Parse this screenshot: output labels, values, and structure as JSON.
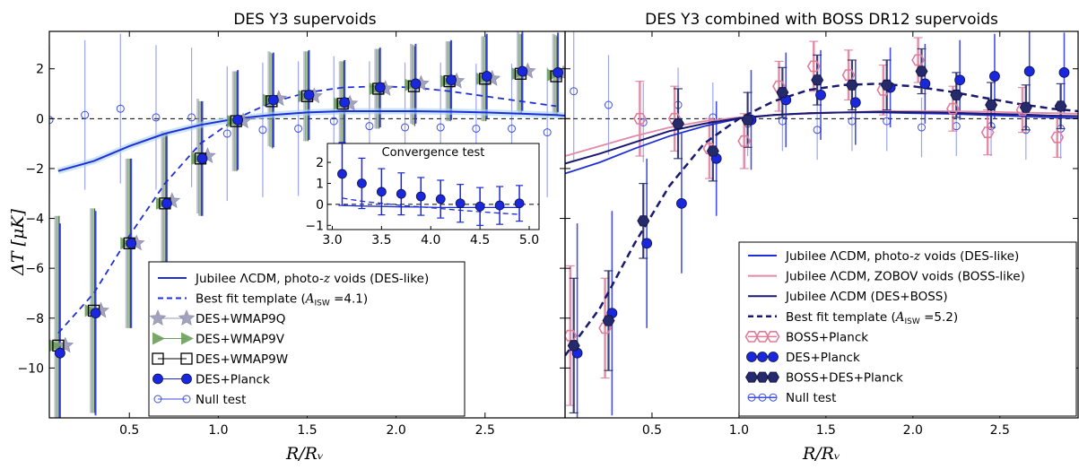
{
  "colors": {
    "jubilee_des": "#1f2fd6",
    "jubilee_boss": "#e08aa8",
    "jubilee_combined": "#191970",
    "best_fit_left": "#1f2fd6",
    "best_fit_right": "#191970",
    "des_planck": "#1a28dd",
    "boss_planck": "#e07b9a",
    "boss_des_planck": "#252a6a",
    "wmap9q": "#9a9ab8",
    "wmap9v": "#6a9e5a",
    "wmap9w": "#000000",
    "null_test": "#3d4ee0"
  },
  "chart_data": [
    {
      "type": "line",
      "title": "DES Y3 supervoids",
      "ylabel": "ΔT [μK]",
      "xlabel": "R/Rᵥ",
      "xlim": [
        0.05,
        2.95
      ],
      "ylim": [
        -12,
        3.5
      ],
      "xticks": [
        "0.5",
        "1.0",
        "1.5",
        "2.0",
        "2.5"
      ],
      "yticks": [
        "−10",
        "−8",
        "−6",
        "−4",
        "−2",
        "0",
        "2"
      ],
      "x": [
        0.1,
        0.3,
        0.5,
        0.7,
        0.9,
        1.1,
        1.3,
        1.5,
        1.7,
        1.9,
        2.1,
        2.3,
        2.5,
        2.7,
        2.9
      ],
      "series": [
        {
          "name": "Jubilee ΛCDM, photo-z voids (DES-like)",
          "kind": "line",
          "x": [
            0.1,
            0.3,
            0.5,
            0.7,
            0.9,
            1.1,
            1.3,
            1.5,
            1.7,
            1.9,
            2.1,
            2.3,
            2.5,
            2.7,
            2.9
          ],
          "values": [
            -2.1,
            -1.7,
            -1.1,
            -0.6,
            -0.25,
            0.0,
            0.15,
            0.25,
            0.3,
            0.3,
            0.3,
            0.28,
            0.25,
            0.2,
            0.15
          ]
        },
        {
          "name": "Best fit template (A_ISW = 4.1)",
          "kind": "dashed",
          "x": [
            0.1,
            0.3,
            0.5,
            0.7,
            0.9,
            1.1,
            1.3,
            1.5,
            1.7,
            1.9,
            2.1,
            2.3,
            2.5,
            2.7,
            2.9
          ],
          "values": [
            -8.6,
            -7.0,
            -4.7,
            -2.6,
            -1.0,
            0.0,
            0.65,
            1.05,
            1.25,
            1.3,
            1.25,
            1.1,
            0.9,
            0.7,
            0.5
          ]
        },
        {
          "name": "DES+WMAP9Q",
          "kind": "points",
          "x": [
            0.1,
            0.3,
            0.5,
            0.7,
            0.9,
            1.1,
            1.3,
            1.5,
            1.7,
            1.9,
            2.1,
            2.3,
            2.5,
            2.7,
            2.9
          ],
          "values": [
            -9.1,
            -7.7,
            -5.0,
            -3.3,
            -1.5,
            -0.1,
            0.8,
            0.9,
            0.6,
            1.2,
            1.4,
            1.5,
            1.6,
            1.9,
            1.8
          ],
          "errors": [
            5.2,
            4.1,
            3.4,
            2.8,
            2.3,
            2.0,
            1.9,
            1.8,
            1.7,
            1.6,
            1.6,
            1.6,
            1.7,
            1.6,
            1.6
          ]
        },
        {
          "name": "DES+WMAP9V",
          "kind": "points",
          "x": [
            0.1,
            0.3,
            0.5,
            0.7,
            0.9,
            1.1,
            1.3,
            1.5,
            1.7,
            1.9,
            2.1,
            2.3,
            2.5,
            2.7,
            2.9
          ],
          "values": [
            -9.1,
            -7.7,
            -5.0,
            -3.4,
            -1.6,
            -0.1,
            0.75,
            0.9,
            0.6,
            1.2,
            1.35,
            1.5,
            1.6,
            1.8,
            1.75
          ],
          "errors": [
            5.2,
            4.1,
            3.4,
            2.8,
            2.3,
            2.0,
            1.9,
            1.8,
            1.7,
            1.6,
            1.6,
            1.6,
            1.7,
            1.6,
            1.6
          ]
        },
        {
          "name": "DES+WMAP9W",
          "kind": "points",
          "x": [
            0.1,
            0.3,
            0.5,
            0.7,
            0.9,
            1.1,
            1.3,
            1.5,
            1.7,
            1.9,
            2.1,
            2.3,
            2.5,
            2.7,
            2.9
          ],
          "values": [
            -9.1,
            -7.7,
            -5.0,
            -3.4,
            -1.6,
            -0.1,
            0.7,
            0.9,
            0.6,
            1.2,
            1.3,
            1.5,
            1.6,
            1.8,
            1.7
          ],
          "errors": [
            5.2,
            4.1,
            3.4,
            2.8,
            2.3,
            2.0,
            1.9,
            1.8,
            1.7,
            1.6,
            1.6,
            1.6,
            1.7,
            1.6,
            1.6
          ]
        },
        {
          "name": "DES+Planck",
          "kind": "points",
          "x": [
            0.1,
            0.3,
            0.5,
            0.7,
            0.9,
            1.1,
            1.3,
            1.5,
            1.7,
            1.9,
            2.1,
            2.3,
            2.5,
            2.7,
            2.9
          ],
          "values": [
            -9.4,
            -7.8,
            -5.0,
            -3.4,
            -1.6,
            -0.05,
            0.75,
            0.95,
            0.65,
            1.25,
            1.4,
            1.55,
            1.7,
            1.9,
            1.85
          ],
          "errors": [
            5.2,
            4.1,
            3.4,
            2.8,
            2.3,
            2.0,
            1.9,
            1.8,
            1.7,
            1.6,
            1.6,
            1.6,
            1.7,
            1.6,
            1.6
          ]
        },
        {
          "name": "Null test",
          "kind": "open-points",
          "x": [
            0.1,
            0.3,
            0.5,
            0.7,
            0.9,
            1.1,
            1.3,
            1.5,
            1.7,
            1.9,
            2.1,
            2.3,
            2.5,
            2.7,
            2.9
          ],
          "values": [
            -0.05,
            0.15,
            0.4,
            0.05,
            0.05,
            -0.6,
            -0.45,
            -0.4,
            -0.1,
            -0.3,
            -0.35,
            -0.35,
            -0.4,
            -0.4,
            -0.55
          ],
          "errors": [
            3.0,
            3.0,
            3.0,
            2.9,
            2.8,
            2.7,
            2.7,
            2.7,
            2.6,
            2.6,
            2.6,
            2.6,
            2.6,
            2.6,
            2.6
          ]
        }
      ],
      "legend": {
        "placement": "lower-right",
        "entries": [
          {
            "label": "Jubilee ΛCDM, photo-",
            "math": "z",
            "suffix": " voids (DES-like)"
          },
          {
            "label": "Best fit template (",
            "math": "A",
            "sub": "ISW",
            "suffix": " =4.1)"
          },
          {
            "label": "DES+WMAP9Q"
          },
          {
            "label": "DES+WMAP9V"
          },
          {
            "label": "DES+WMAP9W"
          },
          {
            "label": "DES+Planck"
          },
          {
            "label": "Null test"
          }
        ]
      },
      "inset": {
        "title": "Convergence test",
        "xlim": [
          2.95,
          5.1
        ],
        "ylim": [
          -1.2,
          2.9
        ],
        "xticks": [
          "3.0",
          "3.5",
          "4.0",
          "4.5",
          "5.0"
        ],
        "yticks": [
          "−1",
          "0",
          "1",
          "2"
        ],
        "x": [
          3.1,
          3.3,
          3.5,
          3.7,
          3.9,
          4.1,
          4.3,
          4.5,
          4.7,
          4.9
        ],
        "points": [
          1.45,
          1.0,
          0.6,
          0.5,
          0.38,
          0.25,
          0.05,
          -0.1,
          -0.05,
          0.05
        ],
        "errors": [
          1.5,
          1.2,
          1.1,
          1.0,
          0.9,
          0.9,
          0.9,
          0.9,
          0.9,
          0.85
        ],
        "line": [
          -0.05,
          -0.08,
          -0.1,
          -0.12,
          -0.13,
          -0.15,
          -0.15,
          -0.15,
          -0.15,
          -0.15
        ],
        "dashed": [
          0.3,
          0.15,
          0.05,
          -0.05,
          -0.12,
          -0.2,
          -0.28,
          -0.35,
          -0.42,
          -0.48
        ]
      }
    },
    {
      "type": "line",
      "title": "DES Y3 combined with BOSS DR12 supervoids",
      "xlabel": "R/Rᵥ",
      "xlim": [
        0.0,
        2.95
      ],
      "ylim": [
        -12,
        3.5
      ],
      "xticks": [
        "0.5",
        "1.0",
        "1.5",
        "2.0",
        "2.5"
      ],
      "x": [
        0.05,
        0.25,
        0.45,
        0.65,
        0.85,
        1.05,
        1.25,
        1.45,
        1.65,
        1.85,
        2.05,
        2.25,
        2.45,
        2.65,
        2.85
      ],
      "series": [
        {
          "name": "Jubilee ΛCDM, photo-z voids (DES-like)",
          "kind": "line",
          "x": [
            0.0,
            0.2,
            0.4,
            0.6,
            0.8,
            1.0,
            1.2,
            1.4,
            1.6,
            1.8,
            2.0,
            2.2,
            2.4,
            2.6,
            2.8,
            2.95
          ],
          "values": [
            -2.2,
            -1.75,
            -1.2,
            -0.7,
            -0.3,
            0.0,
            0.15,
            0.22,
            0.25,
            0.25,
            0.22,
            0.2,
            0.15,
            0.1,
            0.05,
            0.02
          ]
        },
        {
          "name": "Jubilee ΛCDM, ZOBOV voids (BOSS-like)",
          "kind": "line",
          "x": [
            0.0,
            0.2,
            0.4,
            0.6,
            0.8,
            1.0,
            1.2,
            1.4,
            1.6,
            1.8,
            2.0,
            2.2,
            2.4,
            2.6,
            2.8,
            2.95
          ],
          "values": [
            -1.5,
            -1.1,
            -0.7,
            -0.35,
            -0.1,
            0.05,
            0.15,
            0.2,
            0.25,
            0.3,
            0.3,
            0.3,
            0.28,
            0.25,
            0.22,
            0.2
          ]
        },
        {
          "name": "Jubilee ΛCDM (DES+BOSS)",
          "kind": "line",
          "x": [
            0.0,
            0.2,
            0.4,
            0.6,
            0.8,
            1.0,
            1.2,
            1.4,
            1.6,
            1.8,
            2.0,
            2.2,
            2.4,
            2.6,
            2.8,
            2.95
          ],
          "values": [
            -1.8,
            -1.4,
            -0.95,
            -0.5,
            -0.2,
            0.02,
            0.15,
            0.22,
            0.25,
            0.27,
            0.26,
            0.24,
            0.2,
            0.17,
            0.12,
            0.1
          ]
        },
        {
          "name": "Best fit template (A_ISW = 5.2)",
          "kind": "dashed",
          "x": [
            0.0,
            0.2,
            0.4,
            0.6,
            0.8,
            1.0,
            1.2,
            1.4,
            1.6,
            1.8,
            2.0,
            2.2,
            2.4,
            2.6,
            2.8,
            2.95
          ],
          "values": [
            -9.5,
            -7.6,
            -5.0,
            -2.7,
            -1.0,
            0.0,
            0.7,
            1.15,
            1.35,
            1.4,
            1.3,
            1.1,
            0.85,
            0.6,
            0.4,
            0.3
          ]
        },
        {
          "name": "BOSS+Planck",
          "kind": "points",
          "x": [
            0.03,
            0.23,
            0.43,
            0.63,
            0.83,
            1.03,
            1.23,
            1.43,
            1.63,
            1.83,
            2.03,
            2.23,
            2.43,
            2.63,
            2.83
          ],
          "values": [
            -8.7,
            -8.4,
            0.0,
            0.0,
            -1.2,
            -0.9,
            1.3,
            2.1,
            1.75,
            1.15,
            2.35,
            0.4,
            -0.55,
            0.35,
            -0.75
          ],
          "errors": [
            2.8,
            2.0,
            1.5,
            1.3,
            1.2,
            1.1,
            1.0,
            1.0,
            1.0,
            1.0,
            0.9,
            0.9,
            0.9,
            0.9,
            0.8
          ]
        },
        {
          "name": "DES+Planck",
          "kind": "points",
          "x": [
            0.07,
            0.27,
            0.47,
            0.67,
            0.87,
            1.07,
            1.27,
            1.47,
            1.67,
            1.87,
            2.07,
            2.27,
            2.47,
            2.67,
            2.87
          ],
          "values": [
            -9.4,
            -7.8,
            -5.0,
            -3.4,
            -1.6,
            -0.05,
            0.75,
            0.95,
            0.65,
            1.25,
            1.4,
            1.55,
            1.7,
            1.9,
            1.85
          ],
          "errors": [
            5.2,
            4.1,
            3.4,
            2.8,
            2.3,
            2.0,
            1.9,
            1.8,
            1.7,
            1.6,
            1.6,
            1.6,
            1.7,
            1.6,
            1.6
          ]
        },
        {
          "name": "BOSS+DES+Planck",
          "kind": "points",
          "x": [
            0.05,
            0.25,
            0.45,
            0.65,
            0.85,
            1.05,
            1.25,
            1.45,
            1.65,
            1.85,
            2.05,
            2.25,
            2.45,
            2.65,
            2.85
          ],
          "values": [
            -9.1,
            -8.1,
            -4.1,
            -0.2,
            -1.3,
            -0.05,
            1.05,
            1.55,
            1.35,
            1.35,
            1.9,
            0.95,
            0.55,
            0.45,
            0.5
          ],
          "errors": [
            2.7,
            2.0,
            1.5,
            1.4,
            1.2,
            1.1,
            1.0,
            1.0,
            1.0,
            1.0,
            0.9,
            0.9,
            0.9,
            0.9,
            0.9
          ]
        },
        {
          "name": "Null test",
          "kind": "open-points",
          "x": [
            0.05,
            0.25,
            0.45,
            0.65,
            0.85,
            1.05,
            1.25,
            1.45,
            1.65,
            1.85,
            2.05,
            2.25,
            2.45,
            2.65,
            2.85
          ],
          "values": [
            1.1,
            0.55,
            -0.15,
            0.55,
            0.05,
            -0.2,
            -0.1,
            -0.45,
            -0.1,
            -0.1,
            -0.35,
            -0.3,
            -0.3,
            -0.45,
            -0.4
          ],
          "errors": [
            2.8,
            2.0,
            1.6,
            1.5,
            1.4,
            1.3,
            1.2,
            1.2,
            1.2,
            1.2,
            1.2,
            1.2,
            1.2,
            1.2,
            1.2
          ]
        }
      ],
      "legend": {
        "placement": "lower-right",
        "entries": [
          {
            "label": "Jubilee ΛCDM, photo-",
            "math": "z",
            "suffix": " voids (DES-like)"
          },
          {
            "label": "Jubilee ΛCDM, ZOBOV voids (BOSS-like)"
          },
          {
            "label": "Jubilee ΛCDM (DES+BOSS)"
          },
          {
            "label": "Best fit template (",
            "math": "A",
            "sub": "ISW",
            "suffix": " =5.2)"
          },
          {
            "label": "BOSS+Planck"
          },
          {
            "label": "DES+Planck"
          },
          {
            "label": "BOSS+DES+Planck"
          },
          {
            "label": "Null test"
          }
        ]
      }
    }
  ]
}
